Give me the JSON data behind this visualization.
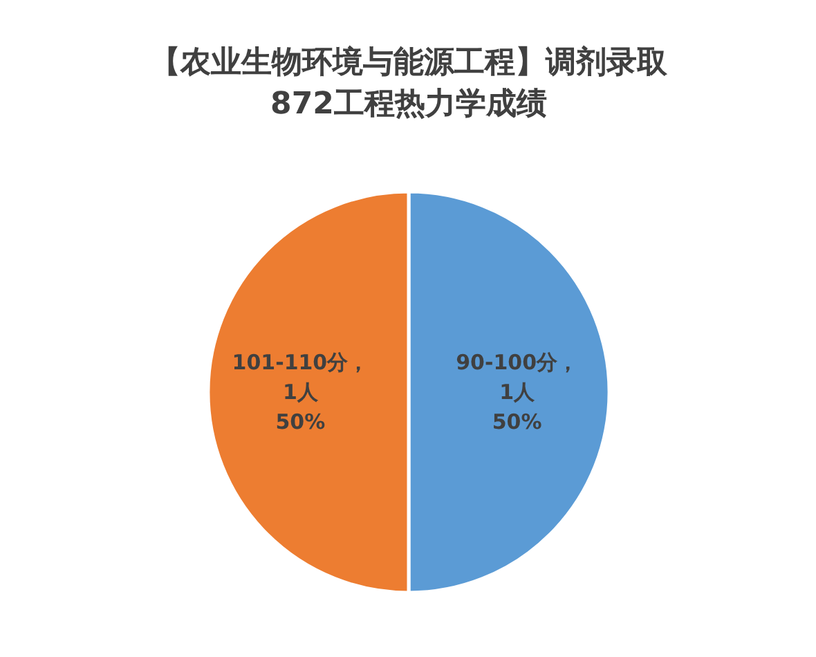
{
  "chart_data": {
    "type": "pie",
    "title": "【农业生物环境与能源工程】调剂录取\n872工程热力学成绩",
    "categories": [
      "90-100分",
      "101-110分"
    ],
    "values": [
      1,
      1
    ],
    "colors": [
      "#5b9bd5",
      "#ed7d31"
    ],
    "value_labels": [
      "，\n1人\n50%",
      "，\n1人\n50%"
    ]
  }
}
